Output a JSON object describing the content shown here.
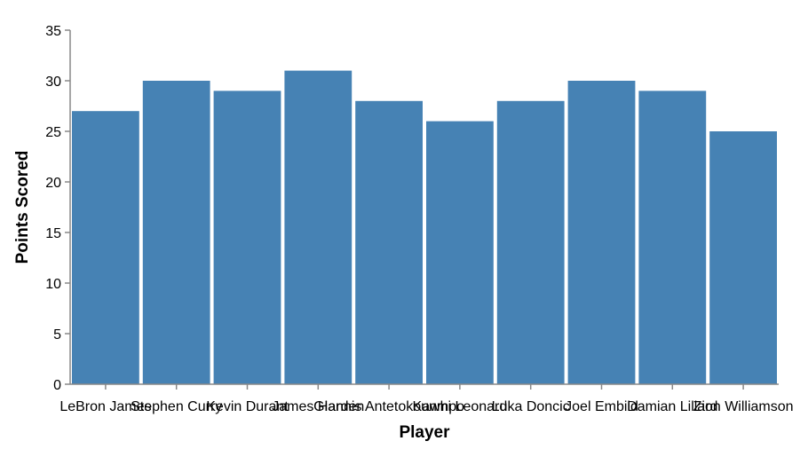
{
  "chart_data": {
    "type": "bar",
    "categories": [
      "LeBron James",
      "Stephen Curry",
      "Kevin Durant",
      "James Harden",
      "Giannis Antetokounmpo",
      "Kawhi Leonard",
      "Luka Doncic",
      "Joel Embiid",
      "Damian Lillard",
      "Zion Williamson"
    ],
    "values": [
      27,
      30,
      29,
      31,
      28,
      26,
      28,
      30,
      29,
      25
    ],
    "xlabel": "Player",
    "ylabel": "Points Scored",
    "ylim": [
      0,
      35
    ],
    "yticks": [
      0,
      5,
      10,
      15,
      20,
      25,
      30,
      35
    ],
    "grid": false,
    "bar_color": "#4682b4"
  }
}
